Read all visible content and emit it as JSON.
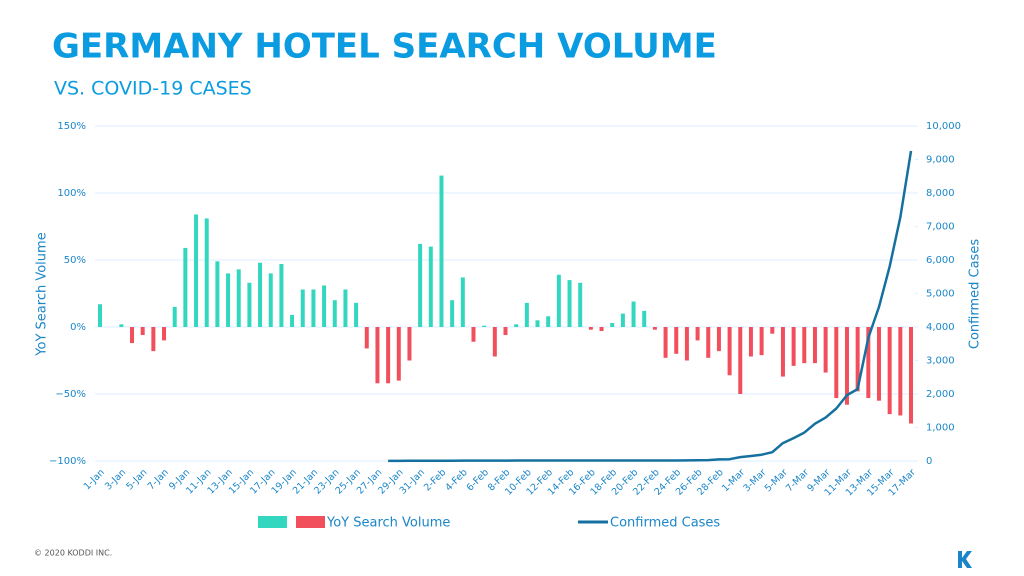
{
  "chart_data": {
    "type": "bar",
    "title": "GERMANY HOTEL SEARCH VOLUME",
    "subtitle": "VS. COVID-19 CASES",
    "ylabel": "YoY Search Volume",
    "y2label": "Confirmed Cases",
    "footer": "© 2020 KODDI INC.",
    "categories": [
      "1-Jan",
      null,
      "3-Jan",
      null,
      "5-Jan",
      null,
      "7-Jan",
      null,
      "9-Jan",
      null,
      "11-Jan",
      null,
      "13-Jan",
      null,
      "15-Jan",
      null,
      "17-Jan",
      null,
      "19-Jan",
      null,
      "21-Jan",
      null,
      "23-Jan",
      null,
      "25-Jan",
      null,
      "27-Jan",
      null,
      "29-Jan",
      null,
      "31-Jan",
      null,
      "2-Feb",
      null,
      "4-Feb",
      null,
      "6-Feb",
      null,
      "8-Feb",
      null,
      "10-Feb",
      null,
      "12-Feb",
      null,
      "14-Feb",
      null,
      "16-Feb",
      null,
      "18-Feb",
      null,
      "20-Feb",
      null,
      "22-Feb",
      null,
      "24-Feb",
      null,
      "26-Feb",
      null,
      "28-Feb",
      null,
      "1-Mar",
      null,
      "3-Mar",
      null,
      "5-Mar",
      null,
      "7-Mar",
      null,
      "9-Mar",
      null,
      "11-Mar",
      null,
      "13-Mar",
      null,
      "15-Mar",
      null,
      "17-Mar"
    ],
    "series": [
      {
        "name": "YoY Search Volume",
        "color": "#33d6bf",
        "negative_color": "#f24f5c",
        "values": [
          17,
          0,
          2,
          -12,
          -6,
          -18,
          -10,
          15,
          59,
          84,
          81,
          49,
          40,
          43,
          33,
          48,
          40,
          47,
          9,
          28,
          28,
          31,
          20,
          28,
          18,
          -16,
          -42,
          -42,
          -40,
          -25,
          62,
          60,
          113,
          20,
          37,
          -11,
          1,
          -22,
          -6,
          2,
          18,
          5,
          8,
          39,
          35,
          33,
          -2,
          -3,
          3,
          10,
          19,
          12,
          -2,
          -23,
          -20,
          -25,
          -10,
          -23,
          -18,
          -36,
          -50,
          -22,
          -21,
          -5,
          -37,
          -29,
          -27,
          -27,
          -34,
          -53,
          -58,
          -48,
          -53,
          -55,
          -65,
          -66,
          -72
        ]
      },
      {
        "name": "Confirmed Cases",
        "color": "#15709f",
        "axis": "y2",
        "values": [
          null,
          null,
          null,
          null,
          null,
          null,
          null,
          null,
          null,
          null,
          null,
          null,
          null,
          null,
          null,
          null,
          null,
          null,
          null,
          null,
          null,
          null,
          null,
          null,
          null,
          null,
          null,
          4,
          4,
          5,
          5,
          7,
          8,
          10,
          12,
          12,
          12,
          13,
          13,
          14,
          14,
          16,
          16,
          16,
          16,
          16,
          16,
          16,
          16,
          16,
          16,
          16,
          16,
          16,
          16,
          18,
          21,
          26,
          48,
          53,
          117,
          150,
          188,
          262,
          534,
          684,
          847,
          1112,
          1296,
          1567,
          1966,
          2145,
          3675,
          4599,
          5813,
          7272,
          9257
        ]
      }
    ],
    "ylim": [
      -100,
      150
    ],
    "yticks": [
      {
        "value": -100,
        "label": "−100%"
      },
      {
        "value": -50,
        "label": "−50%"
      },
      {
        "value": 0,
        "label": "0%"
      },
      {
        "value": 50,
        "label": "50%"
      },
      {
        "value": 100,
        "label": "100%"
      },
      {
        "value": 150,
        "label": "150%"
      }
    ],
    "y2lim": [
      0,
      10000
    ],
    "y2ticks": [
      0,
      {
        "value": 1000,
        "label": "1,000"
      },
      {
        "value": 2000,
        "label": "2,000"
      },
      {
        "value": 3000,
        "label": "3,000"
      },
      {
        "value": 4000,
        "label": "4,000"
      },
      {
        "value": 5000,
        "label": "5,000"
      },
      {
        "value": 6000,
        "label": "6,000"
      },
      {
        "value": 7000,
        "label": "7,000"
      },
      {
        "value": 8000,
        "label": "8,000"
      },
      {
        "value": 9000,
        "label": "9,000"
      },
      {
        "value": 10000,
        "label": "10,000"
      }
    ],
    "grid": true
  }
}
